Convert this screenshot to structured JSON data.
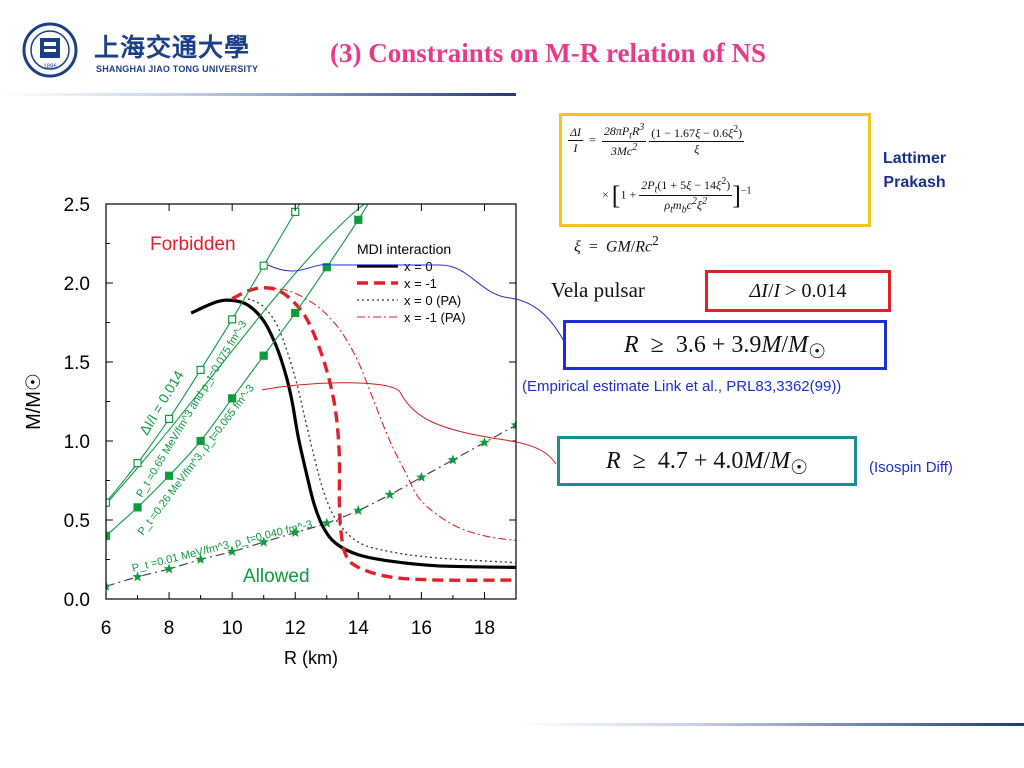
{
  "header": {
    "logo_cn": "上海交通大學",
    "logo_en": "SHANGHAI  JIAO TONG  UNIVERSITY",
    "title": "(3) Constraints on M-R relation of NS"
  },
  "formulas": {
    "eq_lhs": "ΔI/I",
    "eq_num1": "28πP_t R^3",
    "eq_den1": "3Mc^2",
    "eq_num2": "(1 − 1.67ξ − 0.6ξ^2)",
    "eq_den2": "ξ",
    "eq_row2_num": "2P_t(1 + 5ξ − 14ξ^2)",
    "eq_row2_den": "ρ_t m_b c^2 ξ^2",
    "xi_def": "ξ = GM/Rc^2",
    "vela_label": "Vela pulsar",
    "vela_constraint": "ΔI/I > 0.014",
    "r_constraint_1": "R ≥ 3.6 + 3.9M/M☉",
    "r_constraint_1_ref": "(Empirical estimate Link et al., PRL83,3362(99))",
    "r_constraint_2": "R ≥ 4.7 + 4.0M/M☉",
    "r_constraint_2_ref": "(Isospin Diff)",
    "authors": [
      "Lattimer",
      "Prakash"
    ]
  },
  "colors": {
    "title": "#e8398b",
    "navy": "#1b3f86",
    "green": "#0e9a3e",
    "red": "#e0202a",
    "blue_text": "#1b2fd0",
    "yellow_box": "#f2c816",
    "teal_box": "#1a8d96"
  },
  "chart_data": {
    "type": "line",
    "xlabel": "R (km)",
    "ylabel": "M/M☉",
    "xlim": [
      6,
      19
    ],
    "ylim": [
      0,
      2.5
    ],
    "xticks": [
      6,
      8,
      10,
      12,
      14,
      16,
      18
    ],
    "yticks": [
      0.0,
      0.5,
      1.0,
      1.5,
      2.0,
      2.5
    ],
    "ytick_labels": [
      "0.0",
      "0.5",
      "1.0",
      "1.5",
      "2.0",
      "2.5"
    ],
    "region_labels": [
      "Forbidden",
      "Allowed"
    ],
    "legend": {
      "title": "MDI interaction",
      "position": "top-right",
      "entries": [
        "x = 0",
        "x = -1",
        "x = 0  (PA)",
        "x = -1 (PA)"
      ]
    },
    "series": [
      {
        "name": "x = 0",
        "style": "solid-thick",
        "color": "#000000",
        "x": [
          8.7,
          9.5,
          10.0,
          10.5,
          11.0,
          11.4,
          11.7,
          11.9,
          12.1,
          12.35,
          12.6,
          12.9,
          13.3,
          14.0,
          15.0,
          16.5,
          19.0
        ],
        "y": [
          1.81,
          1.88,
          1.89,
          1.86,
          1.76,
          1.6,
          1.42,
          1.25,
          1.02,
          0.8,
          0.6,
          0.45,
          0.35,
          0.28,
          0.24,
          0.21,
          0.2
        ]
      },
      {
        "name": "x = -1",
        "style": "dashed-thick",
        "color": "#e0202a",
        "x": [
          10.0,
          10.5,
          11.0,
          11.5,
          12.0,
          12.4,
          12.8,
          13.1,
          13.3,
          13.4,
          13.4,
          13.45,
          13.6,
          14.0,
          15.0,
          16.5,
          19.0
        ],
        "y": [
          1.9,
          1.95,
          1.97,
          1.95,
          1.87,
          1.76,
          1.57,
          1.37,
          1.16,
          0.9,
          0.62,
          0.43,
          0.28,
          0.2,
          0.14,
          0.12,
          0.12
        ]
      },
      {
        "name": "x = 0  (PA)",
        "style": "dotted",
        "color": "#000000",
        "x": [
          10.5,
          11.0,
          11.5,
          12.0,
          12.3,
          12.6,
          12.9,
          13.3,
          14.0,
          15.0,
          16.5,
          19.0
        ],
        "y": [
          1.9,
          1.85,
          1.7,
          1.4,
          1.15,
          0.9,
          0.68,
          0.5,
          0.36,
          0.3,
          0.26,
          0.23
        ]
      },
      {
        "name": "x = -1 (PA)",
        "style": "dashdot",
        "color": "#e0202a",
        "x": [
          11.0,
          11.8,
          12.5,
          13.0,
          13.5,
          14.0,
          14.5,
          15.0,
          15.5,
          16.0,
          17.0,
          18.0,
          19.0
        ],
        "y": [
          1.97,
          1.95,
          1.88,
          1.8,
          1.68,
          1.5,
          1.25,
          1.0,
          0.8,
          0.62,
          0.47,
          0.4,
          0.37
        ]
      },
      {
        "name": "ΔI/I = 0.014",
        "style": "green-line",
        "color": "#0e9a3e",
        "x": [
          6.0,
          7.0,
          8.0,
          9.0,
          10.0,
          11.0,
          12.0,
          13.0,
          14.0,
          14.6
        ],
        "y": [
          0.6,
          0.83,
          1.07,
          1.32,
          1.57,
          1.82,
          2.06,
          2.28,
          2.47,
          2.55
        ]
      },
      {
        "name": "P_t = 0.65 MeV/fm^3 and ρ_t = 0.075 fm^-3",
        "style": "green-open-square",
        "color": "#0e9a3e",
        "x": [
          6.0,
          7.0,
          8.0,
          9.0,
          10.0,
          11.0,
          12.0,
          12.4
        ],
        "y": [
          0.61,
          0.86,
          1.14,
          1.45,
          1.77,
          2.11,
          2.45,
          2.6
        ]
      },
      {
        "name": "P_t = 0.26 MeV/fm^3, ρ_t = 0.065 fm^-3",
        "style": "green-filled-square",
        "color": "#0e9a3e",
        "x": [
          6.0,
          7.0,
          8.0,
          9.0,
          10.0,
          11.0,
          12.0,
          13.0,
          14.0,
          14.6
        ],
        "y": [
          0.4,
          0.58,
          0.78,
          1.0,
          1.27,
          1.54,
          1.81,
          2.1,
          2.4,
          2.6
        ]
      },
      {
        "name": "P_t = 0.01 MeV/fm^3, ρ_t = 0.040 fm^-3",
        "style": "green-star",
        "color": "#0e9a3e",
        "x": [
          6.0,
          7.0,
          8.0,
          9.0,
          10.0,
          11.0,
          12.0,
          13.0,
          14.0,
          15.0,
          16.0,
          17.0,
          18.0,
          19.0
        ],
        "y": [
          0.08,
          0.14,
          0.19,
          0.25,
          0.3,
          0.36,
          0.42,
          0.48,
          0.56,
          0.66,
          0.77,
          0.88,
          0.99,
          1.1
        ]
      }
    ],
    "annotations": [
      "ΔI/I = 0.014",
      "P_t =0.65 MeV/fm^3 and ρ_t=0.075 fm^-3",
      "P_t =0.26 MeV/fm^3, ρ_t=0.065 fm^-3",
      "P_t =0.01 MeV/fm^3, ρ_t=0.040 fm^-3"
    ]
  }
}
